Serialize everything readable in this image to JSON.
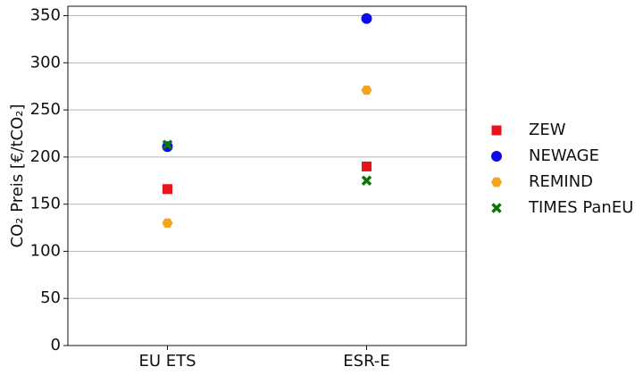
{
  "chart_data": {
    "type": "scatter",
    "y_label": "CO₂ Preis [€/tCO₂]",
    "categories": [
      "EU ETS",
      "ESR-E"
    ],
    "series": [
      {
        "name": "ZEW",
        "color": "#e8141a",
        "marker": "square",
        "values": [
          166,
          190
        ]
      },
      {
        "name": "NEWAGE",
        "color": "#0c0ce6",
        "marker": "circle",
        "values": [
          211,
          347
        ]
      },
      {
        "name": "REMIND",
        "color": "#f4a41c",
        "marker": "hexagon",
        "values": [
          130,
          271
        ]
      },
      {
        "name": "TIMES PanEU",
        "color": "#0b780b",
        "marker": "x",
        "values": [
          213,
          175
        ]
      }
    ],
    "ylim": [
      0,
      360
    ],
    "yticks": [
      0,
      50,
      100,
      150,
      200,
      250,
      300,
      350
    ],
    "grid": true,
    "legend": "right"
  }
}
